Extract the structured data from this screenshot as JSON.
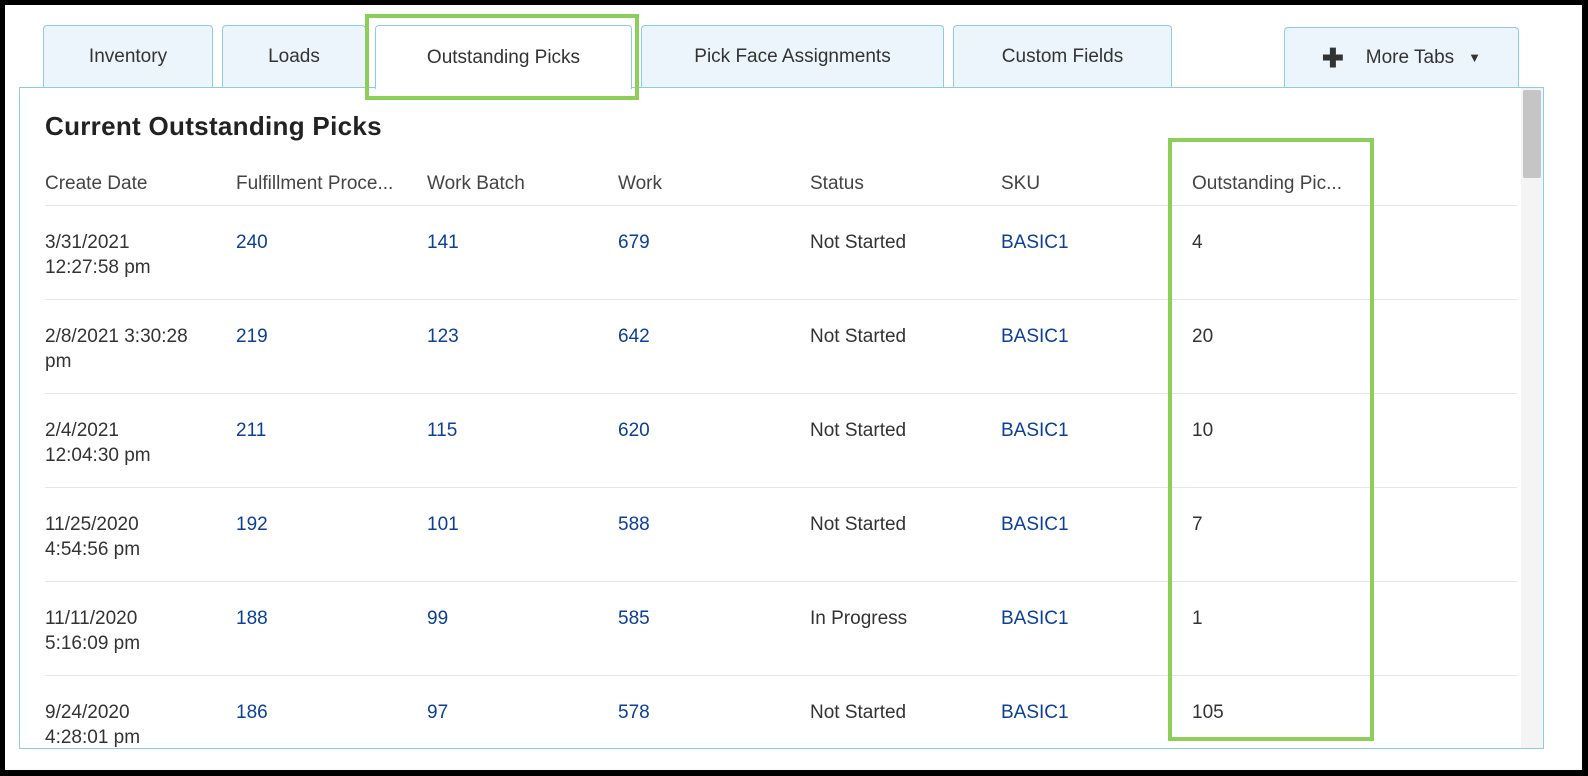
{
  "tabs": [
    {
      "label": "Inventory"
    },
    {
      "label": "Loads"
    },
    {
      "label": "Outstanding Picks",
      "active": true
    },
    {
      "label": "Pick Face Assignments"
    },
    {
      "label": "Custom Fields"
    }
  ],
  "more_tabs": {
    "label": "More Tabs",
    "icon": "plus-icon",
    "caret_icon": "chevron-down-icon"
  },
  "panel": {
    "title": "Current Outstanding Picks"
  },
  "table": {
    "columns": [
      "Create Date",
      "Fulfillment Proce...",
      "Work Batch",
      "Work",
      "Status",
      "SKU",
      "Outstanding Pic..."
    ],
    "rows": [
      {
        "date_line1": "3/31/2021",
        "date_line2": "12:27:58 pm",
        "fulfillment": "240",
        "work_batch": "141",
        "work": "679",
        "status": "Not Started",
        "sku": "BASIC1",
        "outstanding": "4"
      },
      {
        "date_line1": "2/8/2021 3:30:28",
        "date_line2": "pm",
        "fulfillment": "219",
        "work_batch": "123",
        "work": "642",
        "status": "Not Started",
        "sku": "BASIC1",
        "outstanding": "20"
      },
      {
        "date_line1": "2/4/2021",
        "date_line2": "12:04:30 pm",
        "fulfillment": "211",
        "work_batch": "115",
        "work": "620",
        "status": "Not Started",
        "sku": "BASIC1",
        "outstanding": "10"
      },
      {
        "date_line1": "11/25/2020",
        "date_line2": "4:54:56 pm",
        "fulfillment": "192",
        "work_batch": "101",
        "work": "588",
        "status": "Not Started",
        "sku": "BASIC1",
        "outstanding": "7"
      },
      {
        "date_line1": "11/11/2020",
        "date_line2": "5:16:09 pm",
        "fulfillment": "188",
        "work_batch": "99",
        "work": "585",
        "status": "In Progress",
        "sku": "BASIC1",
        "outstanding": "1"
      },
      {
        "date_line1": "9/24/2020",
        "date_line2": "4:28:01 pm",
        "fulfillment": "186",
        "work_batch": "97",
        "work": "578",
        "status": "Not Started",
        "sku": "BASIC1",
        "outstanding": "105"
      }
    ]
  },
  "colors": {
    "link": "#0b3f99",
    "tab_border": "#8ecbe4",
    "tab_bg": "#ebf5fb",
    "highlight": "#8dce5a"
  }
}
